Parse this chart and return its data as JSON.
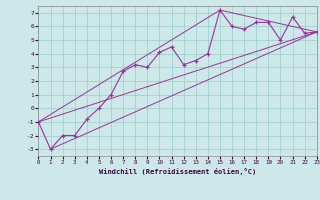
{
  "xlabel": "Windchill (Refroidissement éolien,°C)",
  "bg_color": "#cce8e8",
  "line_color": "#993399",
  "grid_color": "#99cccc",
  "xlim": [
    0,
    23
  ],
  "ylim": [
    -3.5,
    7.5
  ],
  "xticks": [
    0,
    1,
    2,
    3,
    4,
    5,
    6,
    7,
    8,
    9,
    10,
    11,
    12,
    13,
    14,
    15,
    16,
    17,
    18,
    19,
    20,
    21,
    22,
    23
  ],
  "yticks": [
    -3,
    -2,
    -1,
    0,
    1,
    2,
    3,
    4,
    5,
    6,
    7
  ],
  "main_x": [
    0,
    1,
    2,
    3,
    4,
    5,
    6,
    7,
    8,
    9,
    10,
    11,
    12,
    13,
    14,
    15,
    16,
    17,
    18,
    19,
    20,
    21,
    22,
    23
  ],
  "main_y": [
    -1,
    -3,
    -2,
    -2,
    -0.8,
    0,
    1,
    2.7,
    3.2,
    3.0,
    4.1,
    4.5,
    3.2,
    3.5,
    4.0,
    7.2,
    6.0,
    5.8,
    6.3,
    6.3,
    5.0,
    6.7,
    5.5,
    5.6
  ],
  "line1_x": [
    0,
    23
  ],
  "line1_y": [
    -1,
    5.6
  ],
  "line2_x": [
    1,
    23
  ],
  "line2_y": [
    -3,
    5.6
  ],
  "line3_x": [
    0,
    15,
    23
  ],
  "line3_y": [
    -1,
    7.2,
    5.6
  ]
}
